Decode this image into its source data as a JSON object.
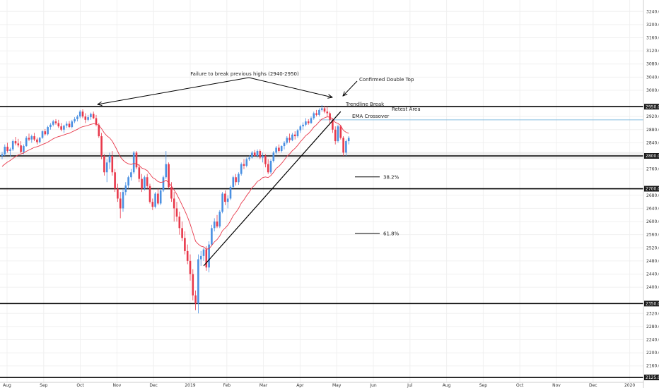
{
  "chart_data": {
    "type": "candlestick",
    "title": "",
    "xlabel": "",
    "ylabel": "",
    "ylim": [
      2110,
      3260
    ],
    "y_ticks": [
      "3240.0",
      "3200.0",
      "3160.0",
      "3120.0",
      "3080.0",
      "3040.0",
      "3000.0",
      "2920.0",
      "2880.0",
      "2840.0",
      "2760.0",
      "2680.0",
      "2640.0",
      "2600.0",
      "2560.0",
      "2520.0",
      "2480.0",
      "2440.0",
      "2400.0",
      "2320.0",
      "2280.0",
      "2240.0",
      "2200.0",
      "2160.0"
    ],
    "x_ticks": [
      "Aug",
      "Sep",
      "Oct",
      "Nov",
      "Dec",
      "2019",
      "Feb",
      "Mar",
      "Apr",
      "May",
      "Jun",
      "Jul",
      "Aug",
      "Sep",
      "Oct",
      "Nov",
      "Dec",
      "2020"
    ],
    "price_levels": [
      {
        "value": 2950,
        "label": "2950.0"
      },
      {
        "value": 2800,
        "label": "2800.0"
      },
      {
        "value": 2700,
        "label": "2700.0"
      },
      {
        "value": 2350,
        "label": "2350.0"
      },
      {
        "value": 2125,
        "label": "2125.0"
      }
    ],
    "retest_level": 2910,
    "colors": {
      "up": "#4a90e2",
      "down": "#e8394b",
      "ema": "#e8394b",
      "level": "#000000",
      "retest": "#87bfe0",
      "grid": "#f0f0f0",
      "level_label_bg": "#1a1a1a"
    },
    "candles": [
      {
        "o": 2800,
        "h": 2812,
        "l": 2790,
        "c": 2805
      },
      {
        "o": 2805,
        "h": 2835,
        "l": 2800,
        "c": 2828
      },
      {
        "o": 2828,
        "h": 2840,
        "l": 2810,
        "c": 2815
      },
      {
        "o": 2815,
        "h": 2825,
        "l": 2798,
        "c": 2820
      },
      {
        "o": 2820,
        "h": 2850,
        "l": 2815,
        "c": 2845
      },
      {
        "o": 2845,
        "h": 2858,
        "l": 2832,
        "c": 2838
      },
      {
        "o": 2838,
        "h": 2852,
        "l": 2826,
        "c": 2832
      },
      {
        "o": 2832,
        "h": 2845,
        "l": 2808,
        "c": 2812
      },
      {
        "o": 2812,
        "h": 2835,
        "l": 2805,
        "c": 2830
      },
      {
        "o": 2830,
        "h": 2860,
        "l": 2828,
        "c": 2855
      },
      {
        "o": 2855,
        "h": 2868,
        "l": 2845,
        "c": 2850
      },
      {
        "o": 2850,
        "h": 2865,
        "l": 2840,
        "c": 2860
      },
      {
        "o": 2860,
        "h": 2870,
        "l": 2845,
        "c": 2850
      },
      {
        "o": 2850,
        "h": 2856,
        "l": 2835,
        "c": 2842
      },
      {
        "o": 2842,
        "h": 2858,
        "l": 2838,
        "c": 2855
      },
      {
        "o": 2855,
        "h": 2878,
        "l": 2852,
        "c": 2875
      },
      {
        "o": 2875,
        "h": 2882,
        "l": 2862,
        "c": 2866
      },
      {
        "o": 2866,
        "h": 2892,
        "l": 2862,
        "c": 2888
      },
      {
        "o": 2888,
        "h": 2900,
        "l": 2880,
        "c": 2895
      },
      {
        "o": 2895,
        "h": 2910,
        "l": 2890,
        "c": 2905
      },
      {
        "o": 2905,
        "h": 2912,
        "l": 2895,
        "c": 2900
      },
      {
        "o": 2900,
        "h": 2910,
        "l": 2885,
        "c": 2890
      },
      {
        "o": 2890,
        "h": 2900,
        "l": 2875,
        "c": 2880
      },
      {
        "o": 2880,
        "h": 2895,
        "l": 2870,
        "c": 2892
      },
      {
        "o": 2892,
        "h": 2905,
        "l": 2885,
        "c": 2898
      },
      {
        "o": 2898,
        "h": 2906,
        "l": 2885,
        "c": 2888
      },
      {
        "o": 2888,
        "h": 2910,
        "l": 2884,
        "c": 2905
      },
      {
        "o": 2905,
        "h": 2918,
        "l": 2900,
        "c": 2912
      },
      {
        "o": 2912,
        "h": 2925,
        "l": 2905,
        "c": 2920
      },
      {
        "o": 2920,
        "h": 2940,
        "l": 2915,
        "c": 2935
      },
      {
        "o": 2935,
        "h": 2942,
        "l": 2915,
        "c": 2920
      },
      {
        "o": 2920,
        "h": 2930,
        "l": 2900,
        "c": 2910
      },
      {
        "o": 2910,
        "h": 2925,
        "l": 2905,
        "c": 2918
      },
      {
        "o": 2918,
        "h": 2932,
        "l": 2910,
        "c": 2928
      },
      {
        "o": 2928,
        "h": 2935,
        "l": 2912,
        "c": 2915
      },
      {
        "o": 2915,
        "h": 2925,
        "l": 2890,
        "c": 2895
      },
      {
        "o": 2895,
        "h": 2900,
        "l": 2855,
        "c": 2860
      },
      {
        "o": 2860,
        "h": 2870,
        "l": 2790,
        "c": 2800
      },
      {
        "o": 2800,
        "h": 2805,
        "l": 2740,
        "c": 2750
      },
      {
        "o": 2750,
        "h": 2790,
        "l": 2720,
        "c": 2780
      },
      {
        "o": 2780,
        "h": 2810,
        "l": 2760,
        "c": 2800
      },
      {
        "o": 2800,
        "h": 2815,
        "l": 2740,
        "c": 2750
      },
      {
        "o": 2750,
        "h": 2760,
        "l": 2690,
        "c": 2700
      },
      {
        "o": 2700,
        "h": 2715,
        "l": 2660,
        "c": 2670
      },
      {
        "o": 2670,
        "h": 2690,
        "l": 2610,
        "c": 2640
      },
      {
        "o": 2640,
        "h": 2700,
        "l": 2630,
        "c": 2690
      },
      {
        "o": 2690,
        "h": 2720,
        "l": 2680,
        "c": 2710
      },
      {
        "o": 2710,
        "h": 2740,
        "l": 2700,
        "c": 2735
      },
      {
        "o": 2735,
        "h": 2760,
        "l": 2725,
        "c": 2750
      },
      {
        "o": 2750,
        "h": 2815,
        "l": 2745,
        "c": 2810
      },
      {
        "o": 2810,
        "h": 2815,
        "l": 2760,
        "c": 2765
      },
      {
        "o": 2765,
        "h": 2775,
        "l": 2720,
        "c": 2730
      },
      {
        "o": 2730,
        "h": 2745,
        "l": 2690,
        "c": 2700
      },
      {
        "o": 2700,
        "h": 2740,
        "l": 2695,
        "c": 2735
      },
      {
        "o": 2735,
        "h": 2745,
        "l": 2700,
        "c": 2708
      },
      {
        "o": 2708,
        "h": 2715,
        "l": 2655,
        "c": 2660
      },
      {
        "o": 2660,
        "h": 2670,
        "l": 2635,
        "c": 2645
      },
      {
        "o": 2645,
        "h": 2690,
        "l": 2640,
        "c": 2685
      },
      {
        "o": 2685,
        "h": 2700,
        "l": 2650,
        "c": 2655
      },
      {
        "o": 2655,
        "h": 2700,
        "l": 2650,
        "c": 2695
      },
      {
        "o": 2695,
        "h": 2740,
        "l": 2690,
        "c": 2735
      },
      {
        "o": 2735,
        "h": 2815,
        "l": 2730,
        "c": 2775
      },
      {
        "o": 2775,
        "h": 2780,
        "l": 2700,
        "c": 2705
      },
      {
        "o": 2705,
        "h": 2720,
        "l": 2660,
        "c": 2670
      },
      {
        "o": 2670,
        "h": 2690,
        "l": 2600,
        "c": 2640
      },
      {
        "o": 2640,
        "h": 2660,
        "l": 2600,
        "c": 2615
      },
      {
        "o": 2615,
        "h": 2630,
        "l": 2560,
        "c": 2580
      },
      {
        "o": 2580,
        "h": 2600,
        "l": 2540,
        "c": 2550
      },
      {
        "o": 2550,
        "h": 2570,
        "l": 2500,
        "c": 2510
      },
      {
        "o": 2510,
        "h": 2530,
        "l": 2470,
        "c": 2480
      },
      {
        "o": 2480,
        "h": 2500,
        "l": 2420,
        "c": 2440
      },
      {
        "o": 2440,
        "h": 2455,
        "l": 2360,
        "c": 2375
      },
      {
        "o": 2375,
        "h": 2390,
        "l": 2330,
        "c": 2350
      },
      {
        "o": 2350,
        "h": 2500,
        "l": 2320,
        "c": 2485
      },
      {
        "o": 2485,
        "h": 2510,
        "l": 2465,
        "c": 2495
      },
      {
        "o": 2495,
        "h": 2520,
        "l": 2480,
        "c": 2515
      },
      {
        "o": 2515,
        "h": 2525,
        "l": 2450,
        "c": 2460
      },
      {
        "o": 2460,
        "h": 2540,
        "l": 2445,
        "c": 2530
      },
      {
        "o": 2530,
        "h": 2590,
        "l": 2525,
        "c": 2580
      },
      {
        "o": 2580,
        "h": 2610,
        "l": 2570,
        "c": 2600
      },
      {
        "o": 2600,
        "h": 2620,
        "l": 2580,
        "c": 2585
      },
      {
        "o": 2585,
        "h": 2635,
        "l": 2580,
        "c": 2630
      },
      {
        "o": 2630,
        "h": 2690,
        "l": 2625,
        "c": 2685
      },
      {
        "o": 2685,
        "h": 2695,
        "l": 2650,
        "c": 2660
      },
      {
        "o": 2660,
        "h": 2680,
        "l": 2640,
        "c": 2670
      },
      {
        "o": 2670,
        "h": 2710,
        "l": 2665,
        "c": 2705
      },
      {
        "o": 2705,
        "h": 2740,
        "l": 2700,
        "c": 2735
      },
      {
        "o": 2735,
        "h": 2745,
        "l": 2710,
        "c": 2720
      },
      {
        "o": 2720,
        "h": 2750,
        "l": 2712,
        "c": 2745
      },
      {
        "o": 2745,
        "h": 2780,
        "l": 2740,
        "c": 2775
      },
      {
        "o": 2775,
        "h": 2790,
        "l": 2760,
        "c": 2770
      },
      {
        "o": 2770,
        "h": 2795,
        "l": 2765,
        "c": 2790
      },
      {
        "o": 2790,
        "h": 2802,
        "l": 2785,
        "c": 2795
      },
      {
        "o": 2795,
        "h": 2815,
        "l": 2792,
        "c": 2810
      },
      {
        "o": 2810,
        "h": 2818,
        "l": 2798,
        "c": 2800
      },
      {
        "o": 2800,
        "h": 2820,
        "l": 2795,
        "c": 2815
      },
      {
        "o": 2815,
        "h": 2820,
        "l": 2790,
        "c": 2795
      },
      {
        "o": 2795,
        "h": 2810,
        "l": 2780,
        "c": 2800
      },
      {
        "o": 2800,
        "h": 2805,
        "l": 2765,
        "c": 2775
      },
      {
        "o": 2775,
        "h": 2790,
        "l": 2745,
        "c": 2750
      },
      {
        "o": 2750,
        "h": 2790,
        "l": 2745,
        "c": 2785
      },
      {
        "o": 2785,
        "h": 2815,
        "l": 2780,
        "c": 2810
      },
      {
        "o": 2810,
        "h": 2830,
        "l": 2805,
        "c": 2825
      },
      {
        "o": 2825,
        "h": 2835,
        "l": 2810,
        "c": 2815
      },
      {
        "o": 2815,
        "h": 2832,
        "l": 2810,
        "c": 2830
      },
      {
        "o": 2830,
        "h": 2845,
        "l": 2820,
        "c": 2840
      },
      {
        "o": 2840,
        "h": 2860,
        "l": 2835,
        "c": 2855
      },
      {
        "o": 2855,
        "h": 2868,
        "l": 2840,
        "c": 2848
      },
      {
        "o": 2848,
        "h": 2870,
        "l": 2845,
        "c": 2865
      },
      {
        "o": 2865,
        "h": 2875,
        "l": 2850,
        "c": 2860
      },
      {
        "o": 2860,
        "h": 2882,
        "l": 2855,
        "c": 2878
      },
      {
        "o": 2878,
        "h": 2895,
        "l": 2870,
        "c": 2890
      },
      {
        "o": 2890,
        "h": 2902,
        "l": 2880,
        "c": 2895
      },
      {
        "o": 2895,
        "h": 2915,
        "l": 2890,
        "c": 2905
      },
      {
        "o": 2905,
        "h": 2912,
        "l": 2895,
        "c": 2900
      },
      {
        "o": 2900,
        "h": 2920,
        "l": 2898,
        "c": 2915
      },
      {
        "o": 2915,
        "h": 2935,
        "l": 2910,
        "c": 2930
      },
      {
        "o": 2930,
        "h": 2940,
        "l": 2920,
        "c": 2925
      },
      {
        "o": 2925,
        "h": 2945,
        "l": 2920,
        "c": 2940
      },
      {
        "o": 2940,
        "h": 2955,
        "l": 2935,
        "c": 2945
      },
      {
        "o": 2945,
        "h": 2952,
        "l": 2930,
        "c": 2935
      },
      {
        "o": 2935,
        "h": 2950,
        "l": 2920,
        "c": 2930
      },
      {
        "o": 2930,
        "h": 2935,
        "l": 2900,
        "c": 2910
      },
      {
        "o": 2910,
        "h": 2915,
        "l": 2870,
        "c": 2880
      },
      {
        "o": 2880,
        "h": 2890,
        "l": 2835,
        "c": 2845
      },
      {
        "o": 2845,
        "h": 2895,
        "l": 2840,
        "c": 2890
      },
      {
        "o": 2890,
        "h": 2895,
        "l": 2850,
        "c": 2855
      },
      {
        "o": 2855,
        "h": 2860,
        "l": 2800,
        "c": 2810
      },
      {
        "o": 2810,
        "h": 2850,
        "l": 2800,
        "c": 2845
      },
      {
        "o": 2845,
        "h": 2860,
        "l": 2835,
        "c": 2855
      }
    ],
    "ema": [
      2768,
      2775,
      2781,
      2786,
      2792,
      2798,
      2803,
      2806,
      2809,
      2814,
      2818,
      2822,
      2826,
      2828,
      2831,
      2835,
      2838,
      2842,
      2847,
      2852,
      2856,
      2859,
      2861,
      2864,
      2867,
      2869,
      2873,
      2877,
      2881,
      2886,
      2889,
      2891,
      2893,
      2896,
      2898,
      2897,
      2893,
      2883,
      2870,
      2861,
      2855,
      2845,
      2830,
      2814,
      2797,
      2787,
      2780,
      2776,
      2774,
      2777,
      2776,
      2771,
      2763,
      2760,
      2755,
      2745,
      2734,
      2729,
      2722,
      2719,
      2721,
      2726,
      2718,
      2708,
      2696,
      2683,
      2667,
      2650,
      2633,
      2614,
      2592,
      2566,
      2540,
      2531,
      2525,
      2523,
      2516,
      2517,
      2527,
      2538,
      2545,
      2556,
      2572,
      2580,
      2589,
      2602,
      2618,
      2628,
      2640,
      2656,
      2666,
      2679,
      2690,
      2703,
      2711,
      2722,
      2727,
      2734,
      2736,
      2734,
      2740,
      2750,
      2762,
      2768,
      2777,
      2787,
      2799,
      2806,
      2816,
      2823,
      2832,
      2843,
      2852,
      2862,
      2868,
      2877,
      2888,
      2895,
      2904,
      2912,
      2916,
      2919,
      2918,
      2913,
      2902,
      2899,
      2892,
      2878,
      2872,
      2869
    ],
    "fib_levels": [
      {
        "label": "38.2%",
        "value": 2736
      },
      {
        "label": "61.8%",
        "value": 2564
      }
    ],
    "annotations": {
      "failure_text": "Failure to break previous highs (2940-2950)",
      "double_top": "Confirmed Double Top",
      "trendline_break": "Trendline Break",
      "ema_crossover": "EMA Crossover",
      "retest_area": "Retest Area"
    },
    "trendline": {
      "start_index": 75,
      "start_value": 2465,
      "end_index": 126,
      "end_value": 2935
    }
  }
}
